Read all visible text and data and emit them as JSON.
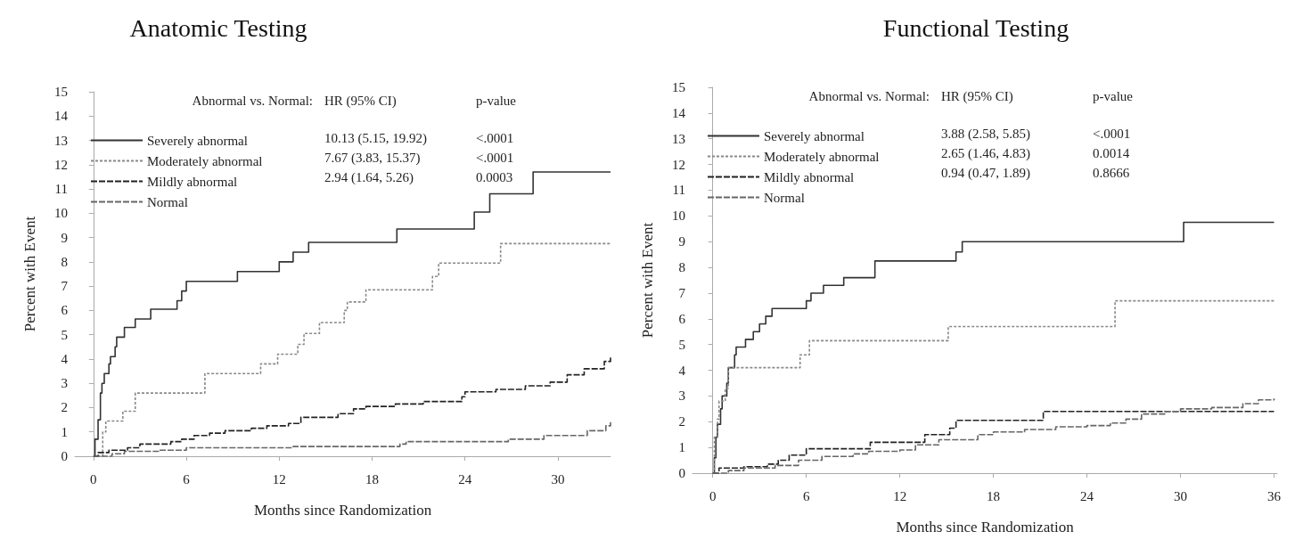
{
  "chart_data": [
    {
      "type": "step",
      "title": "Anatomic Testing",
      "xlabel": "Months since Randomization",
      "ylabel": "Percent with Event",
      "legend_title": "Abnormal vs. Normal:",
      "legend": "top left",
      "grid": false,
      "marker": "none",
      "xlim": [
        -1.2,
        33.4
      ],
      "xticks": [
        0,
        6,
        12,
        18,
        24,
        30
      ],
      "ylim": [
        0,
        15
      ],
      "yticks": [
        0,
        1,
        2,
        3,
        4,
        5,
        6,
        7,
        8,
        9,
        10,
        11,
        12,
        13,
        14,
        15
      ],
      "annotations": [
        "HR (95% CI)",
        "p-value",
        "10.13 (5.15, 19.92)",
        "<.0001",
        "7.67 (3.83, 15.37)",
        "<.0001",
        "2.94 (1.64, 5.26)",
        "0.0003"
      ],
      "series": [
        {
          "name": "Severely abnormal",
          "color": "#333333",
          "line_style": "solid",
          "x": [
            0,
            0.1,
            0.3,
            0.45,
            0.55,
            0.7,
            1.0,
            1.1,
            1.4,
            1.5,
            2.0,
            2.7,
            3.7,
            5.4,
            5.7,
            6.0,
            9.3,
            12.0,
            12.9,
            13.9,
            19.6,
            24.6,
            25.6,
            28.4,
            33.4
          ],
          "values": [
            0,
            0.7,
            1.5,
            2.6,
            3.0,
            3.4,
            3.8,
            4.1,
            4.5,
            4.9,
            5.3,
            5.65,
            6.05,
            6.4,
            6.8,
            7.2,
            7.6,
            8.0,
            8.4,
            8.8,
            9.35,
            10.05,
            10.8,
            11.7,
            11.7
          ]
        },
        {
          "name": "Moderately abnormal",
          "color": "#888888",
          "line_style": "dotted",
          "x": [
            0,
            0.6,
            0.8,
            1.9,
            2.7,
            7.2,
            10.8,
            11.9,
            13.2,
            13.6,
            14.6,
            16.2,
            16.4,
            17.6,
            21.9,
            22.3,
            26.3,
            33.4
          ],
          "values": [
            0,
            1.0,
            1.45,
            1.85,
            2.6,
            3.4,
            3.8,
            4.2,
            4.6,
            5.05,
            5.5,
            6.0,
            6.35,
            6.85,
            7.4,
            7.95,
            8.75,
            8.75
          ]
        },
        {
          "name": "Mildly abnormal",
          "color": "#222222",
          "line_style": "dashed",
          "x": [
            0,
            0.3,
            1.0,
            2.2,
            3.0,
            5.0,
            5.7,
            6.5,
            7.5,
            8.5,
            10.2,
            11.2,
            12.6,
            13.4,
            15.8,
            16.8,
            17.6,
            19.5,
            21.3,
            23.8,
            24.0,
            26.0,
            27.9,
            29.5,
            30.6,
            31.7,
            33.0,
            33.4
          ],
          "values": [
            0,
            0.15,
            0.25,
            0.35,
            0.5,
            0.6,
            0.7,
            0.85,
            0.95,
            1.05,
            1.15,
            1.25,
            1.35,
            1.6,
            1.75,
            1.95,
            2.05,
            2.15,
            2.25,
            2.45,
            2.65,
            2.75,
            2.9,
            3.05,
            3.35,
            3.6,
            3.9,
            4.1
          ]
        },
        {
          "name": "Normal",
          "color": "#666666",
          "line_style": "dashed",
          "x": [
            0,
            1.2,
            2.0,
            4.2,
            6.0,
            12.9,
            19.8,
            20.2,
            26.8,
            29.1,
            31.9,
            33.1,
            33.4
          ],
          "values": [
            0,
            0.1,
            0.2,
            0.25,
            0.35,
            0.4,
            0.5,
            0.6,
            0.7,
            0.85,
            1.05,
            1.25,
            1.4
          ]
        }
      ]
    },
    {
      "type": "step",
      "title": "Functional Testing",
      "xlabel": "Months since Randomization",
      "ylabel": "Percent with Event",
      "legend_title": "Abnormal vs. Normal:",
      "legend": "top left",
      "grid": false,
      "marker": "none",
      "xlim": [
        -1.3,
        36.2
      ],
      "xticks": [
        0,
        6,
        12,
        18,
        24,
        30,
        36
      ],
      "ylim": [
        0,
        15
      ],
      "yticks": [
        0,
        1,
        2,
        3,
        4,
        5,
        6,
        7,
        8,
        9,
        10,
        11,
        12,
        13,
        14,
        15
      ],
      "annotations": [
        "HR (95% CI)",
        "p-value",
        "3.88 (2.58, 5.85)",
        "<.0001",
        "2.65 (1.46, 4.83)",
        "0.0014",
        "0.94 (0.47, 1.89)",
        "0.8666"
      ],
      "series": [
        {
          "name": "Severely abnormal",
          "color": "#333333",
          "line_style": "solid",
          "x": [
            0,
            0.1,
            0.2,
            0.3,
            0.5,
            0.6,
            0.9,
            1.0,
            1.4,
            1.5,
            2.1,
            2.6,
            3.0,
            3.4,
            3.8,
            6.0,
            6.3,
            7.1,
            8.4,
            10.4,
            15.6,
            16.0,
            30.2,
            36
          ],
          "values": [
            0,
            0.6,
            1.4,
            1.9,
            2.5,
            3.0,
            3.5,
            4.1,
            4.6,
            4.9,
            5.2,
            5.5,
            5.8,
            6.1,
            6.4,
            6.7,
            7.0,
            7.3,
            7.6,
            8.25,
            8.6,
            9.0,
            9.75,
            9.75
          ]
        },
        {
          "name": "Moderately abnormal",
          "color": "#888888",
          "line_style": "dotted",
          "x": [
            0,
            0.1,
            0.3,
            0.4,
            0.8,
            1.0,
            5.6,
            6.2,
            15.1,
            25.8,
            36
          ],
          "values": [
            0,
            1.4,
            2.1,
            2.8,
            3.3,
            4.1,
            4.6,
            5.15,
            5.7,
            6.7,
            6.7
          ]
        },
        {
          "name": "Mildly abnormal",
          "color": "#222222",
          "line_style": "dashed",
          "x": [
            0,
            0.4,
            2.0,
            3.5,
            4.2,
            4.9,
            6.0,
            10.1,
            13.6,
            15.2,
            15.6,
            21.2,
            36
          ],
          "values": [
            0,
            0.2,
            0.25,
            0.35,
            0.5,
            0.7,
            0.95,
            1.2,
            1.5,
            1.75,
            2.05,
            2.4,
            2.4
          ]
        },
        {
          "name": "Normal",
          "color": "#666666",
          "line_style": "dashed",
          "x": [
            0,
            1.0,
            2.0,
            4.0,
            5.5,
            7.0,
            9.0,
            10.0,
            12.0,
            13.0,
            14.5,
            17.0,
            18.0,
            20.0,
            22.0,
            24.0,
            25.5,
            26.5,
            27.5,
            29.0,
            30.0,
            32.0,
            34.0,
            35.0,
            36
          ],
          "values": [
            0,
            0.1,
            0.2,
            0.3,
            0.5,
            0.65,
            0.75,
            0.85,
            0.9,
            1.1,
            1.3,
            1.5,
            1.6,
            1.7,
            1.8,
            1.85,
            1.95,
            2.1,
            2.3,
            2.4,
            2.5,
            2.55,
            2.7,
            2.85,
            2.9
          ]
        }
      ]
    }
  ]
}
